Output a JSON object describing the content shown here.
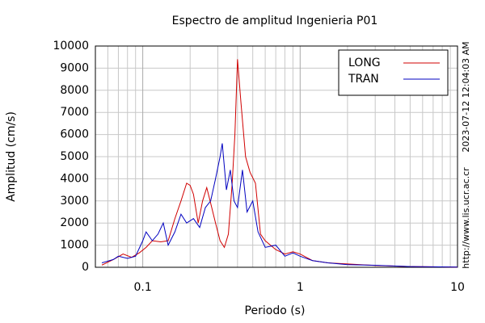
{
  "chart_data": {
    "type": "line",
    "title": "Espectro de amplitud Ingenieria P01",
    "xlabel": "Periodo (s)",
    "ylabel": "Amplitud (cm/s)",
    "timestamp": "2023-07-12 12:04:03 AM",
    "url": "http://www.lis.ucr.ac.cr",
    "xscale": "log",
    "xlim": [
      0.05,
      10
    ],
    "ylim": [
      0,
      10000
    ],
    "xticks": [
      0.1,
      1,
      10
    ],
    "xminorticks": [
      0.06,
      0.07,
      0.08,
      0.09,
      0.2,
      0.3,
      0.4,
      0.5,
      0.6,
      0.7,
      0.8,
      0.9,
      2,
      3,
      4,
      5,
      6,
      7,
      8,
      9
    ],
    "yticks": [
      0,
      1000,
      2000,
      3000,
      4000,
      5000,
      6000,
      7000,
      8000,
      9000,
      10000
    ],
    "grid": true,
    "legend": "upper right",
    "series": [
      {
        "name": "LONG",
        "color": "#d00000",
        "x": [
          0.055,
          0.065,
          0.075,
          0.085,
          0.095,
          0.105,
          0.115,
          0.13,
          0.145,
          0.16,
          0.175,
          0.19,
          0.2,
          0.21,
          0.225,
          0.24,
          0.255,
          0.27,
          0.29,
          0.31,
          0.33,
          0.35,
          0.37,
          0.385,
          0.4,
          0.42,
          0.45,
          0.48,
          0.52,
          0.56,
          0.6,
          0.7,
          0.8,
          0.9,
          1.0,
          1.2,
          1.5,
          2,
          3,
          5,
          10
        ],
        "values": [
          100,
          350,
          600,
          450,
          650,
          900,
          1200,
          1150,
          1200,
          2200,
          3000,
          3800,
          3700,
          3300,
          2000,
          3000,
          3600,
          2900,
          2000,
          1200,
          900,
          1500,
          3800,
          6000,
          9400,
          7500,
          5000,
          4300,
          3800,
          1500,
          1200,
          800,
          600,
          700,
          600,
          300,
          200,
          150,
          80,
          30,
          10
        ]
      },
      {
        "name": "TRAN",
        "color": "#0000c0",
        "x": [
          0.055,
          0.065,
          0.07,
          0.08,
          0.09,
          0.1,
          0.105,
          0.115,
          0.125,
          0.135,
          0.145,
          0.16,
          0.175,
          0.19,
          0.21,
          0.23,
          0.25,
          0.27,
          0.29,
          0.31,
          0.32,
          0.34,
          0.36,
          0.38,
          0.4,
          0.43,
          0.46,
          0.5,
          0.54,
          0.6,
          0.7,
          0.8,
          0.9,
          1.0,
          1.2,
          1.5,
          2,
          3,
          5,
          10
        ],
        "values": [
          200,
          350,
          500,
          400,
          500,
          1200,
          1600,
          1200,
          1500,
          2000,
          1000,
          1600,
          2400,
          2000,
          2200,
          1800,
          2700,
          3000,
          4000,
          5000,
          5600,
          3500,
          4400,
          3000,
          2700,
          4400,
          2500,
          3000,
          1600,
          900,
          1000,
          500,
          650,
          500,
          300,
          200,
          120,
          90,
          30,
          10
        ]
      }
    ]
  }
}
